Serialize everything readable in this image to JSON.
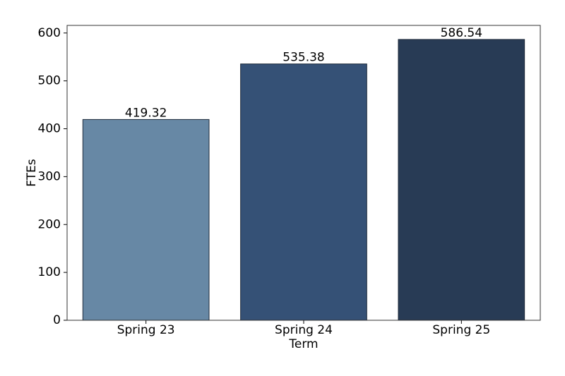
{
  "chart_data": {
    "type": "bar",
    "x_label": "Term",
    "y_label": "FTEs",
    "categories": [
      "Spring 23",
      "Spring 24",
      "Spring 25"
    ],
    "values": [
      419.32,
      535.38,
      586.54
    ],
    "colors": [
      "#6788a5",
      "#355176",
      "#283b55"
    ],
    "ylim": [
      0,
      615.87
    ],
    "yticks": [
      0,
      100,
      200,
      300,
      400,
      500,
      600
    ],
    "grid": false
  }
}
